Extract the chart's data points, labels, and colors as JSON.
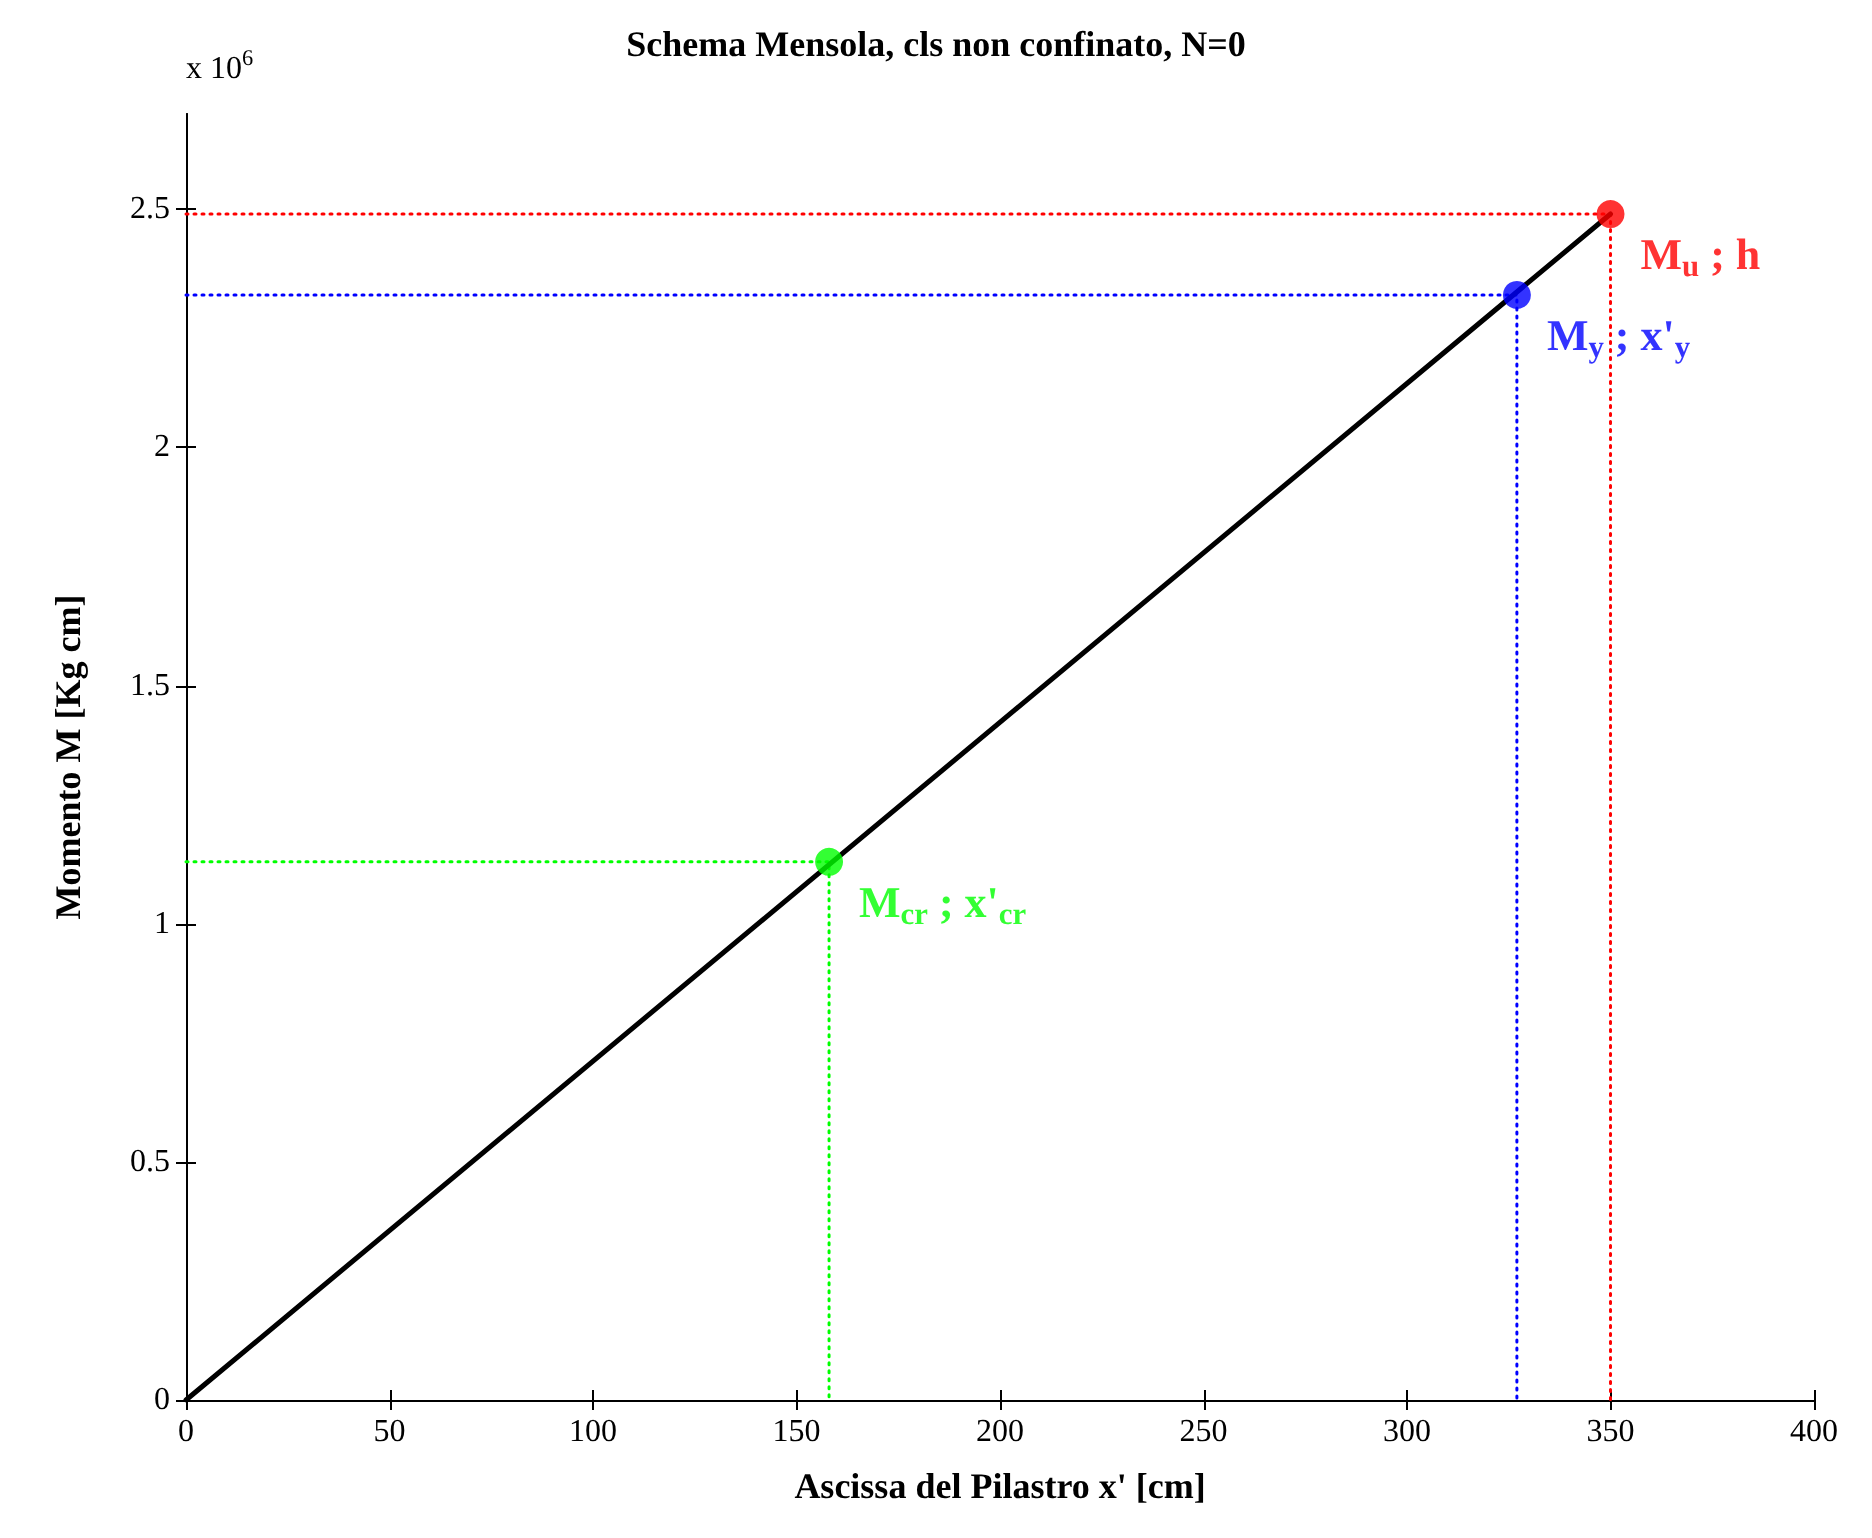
{
  "chart_data": {
    "type": "line",
    "title": "Schema Mensola, cls non confinato, N=0",
    "xlabel": "Ascissa del Pilastro x' [cm]",
    "ylabel": "Momento M [Kg cm]",
    "xlim": [
      0,
      400
    ],
    "xticks": [
      0,
      50,
      100,
      150,
      200,
      250,
      300,
      350,
      400
    ],
    "ylim": [
      0,
      2.7
    ],
    "yticks": [
      0,
      0.5,
      1,
      1.5,
      2,
      2.5
    ],
    "grid": false,
    "series": [
      {
        "color": "#000000",
        "x": [
          0,
          350
        ],
        "values": [
          0,
          2.49
        ],
        "marker": "none",
        "line_style": "solid"
      },
      {
        "color": "#00ff00",
        "x": [
          0,
          158,
          158
        ],
        "values": [
          1.13,
          1.13,
          0
        ],
        "marker": "none",
        "line_style": "dotted"
      },
      {
        "color": "#0000ff",
        "x": [
          0,
          327,
          327
        ],
        "values": [
          2.32,
          2.32,
          0
        ],
        "marker": "none",
        "line_style": "dotted"
      },
      {
        "color": "#ff0000",
        "x": [
          0,
          350,
          350
        ],
        "values": [
          2.49,
          2.49,
          0
        ],
        "marker": "none",
        "line_style": "dotted"
      },
      {
        "type": "scatter",
        "color": "#00ff00",
        "x": [
          158
        ],
        "values": [
          1.13
        ],
        "marker": "circle"
      },
      {
        "type": "scatter",
        "color": "#0000ff",
        "x": [
          327
        ],
        "values": [
          2.32
        ],
        "marker": "circle"
      },
      {
        "type": "scatter",
        "color": "#ff0000",
        "x": [
          350
        ],
        "values": [
          2.49
        ],
        "marker": "circle"
      }
    ],
    "annotations": [
      "x 10$^{6}$",
      {
        "text": "M$_{cr}$ ; x'$_{cr}$",
        "x": 158,
        "y": 1.13
      },
      {
        "text": "M$_{y}$ ; x'$_{y}$",
        "x": 327,
        "y": 2.32
      },
      {
        "text": "M$_{u}$ ; h",
        "x": 350,
        "y": 2.49
      }
    ]
  }
}
